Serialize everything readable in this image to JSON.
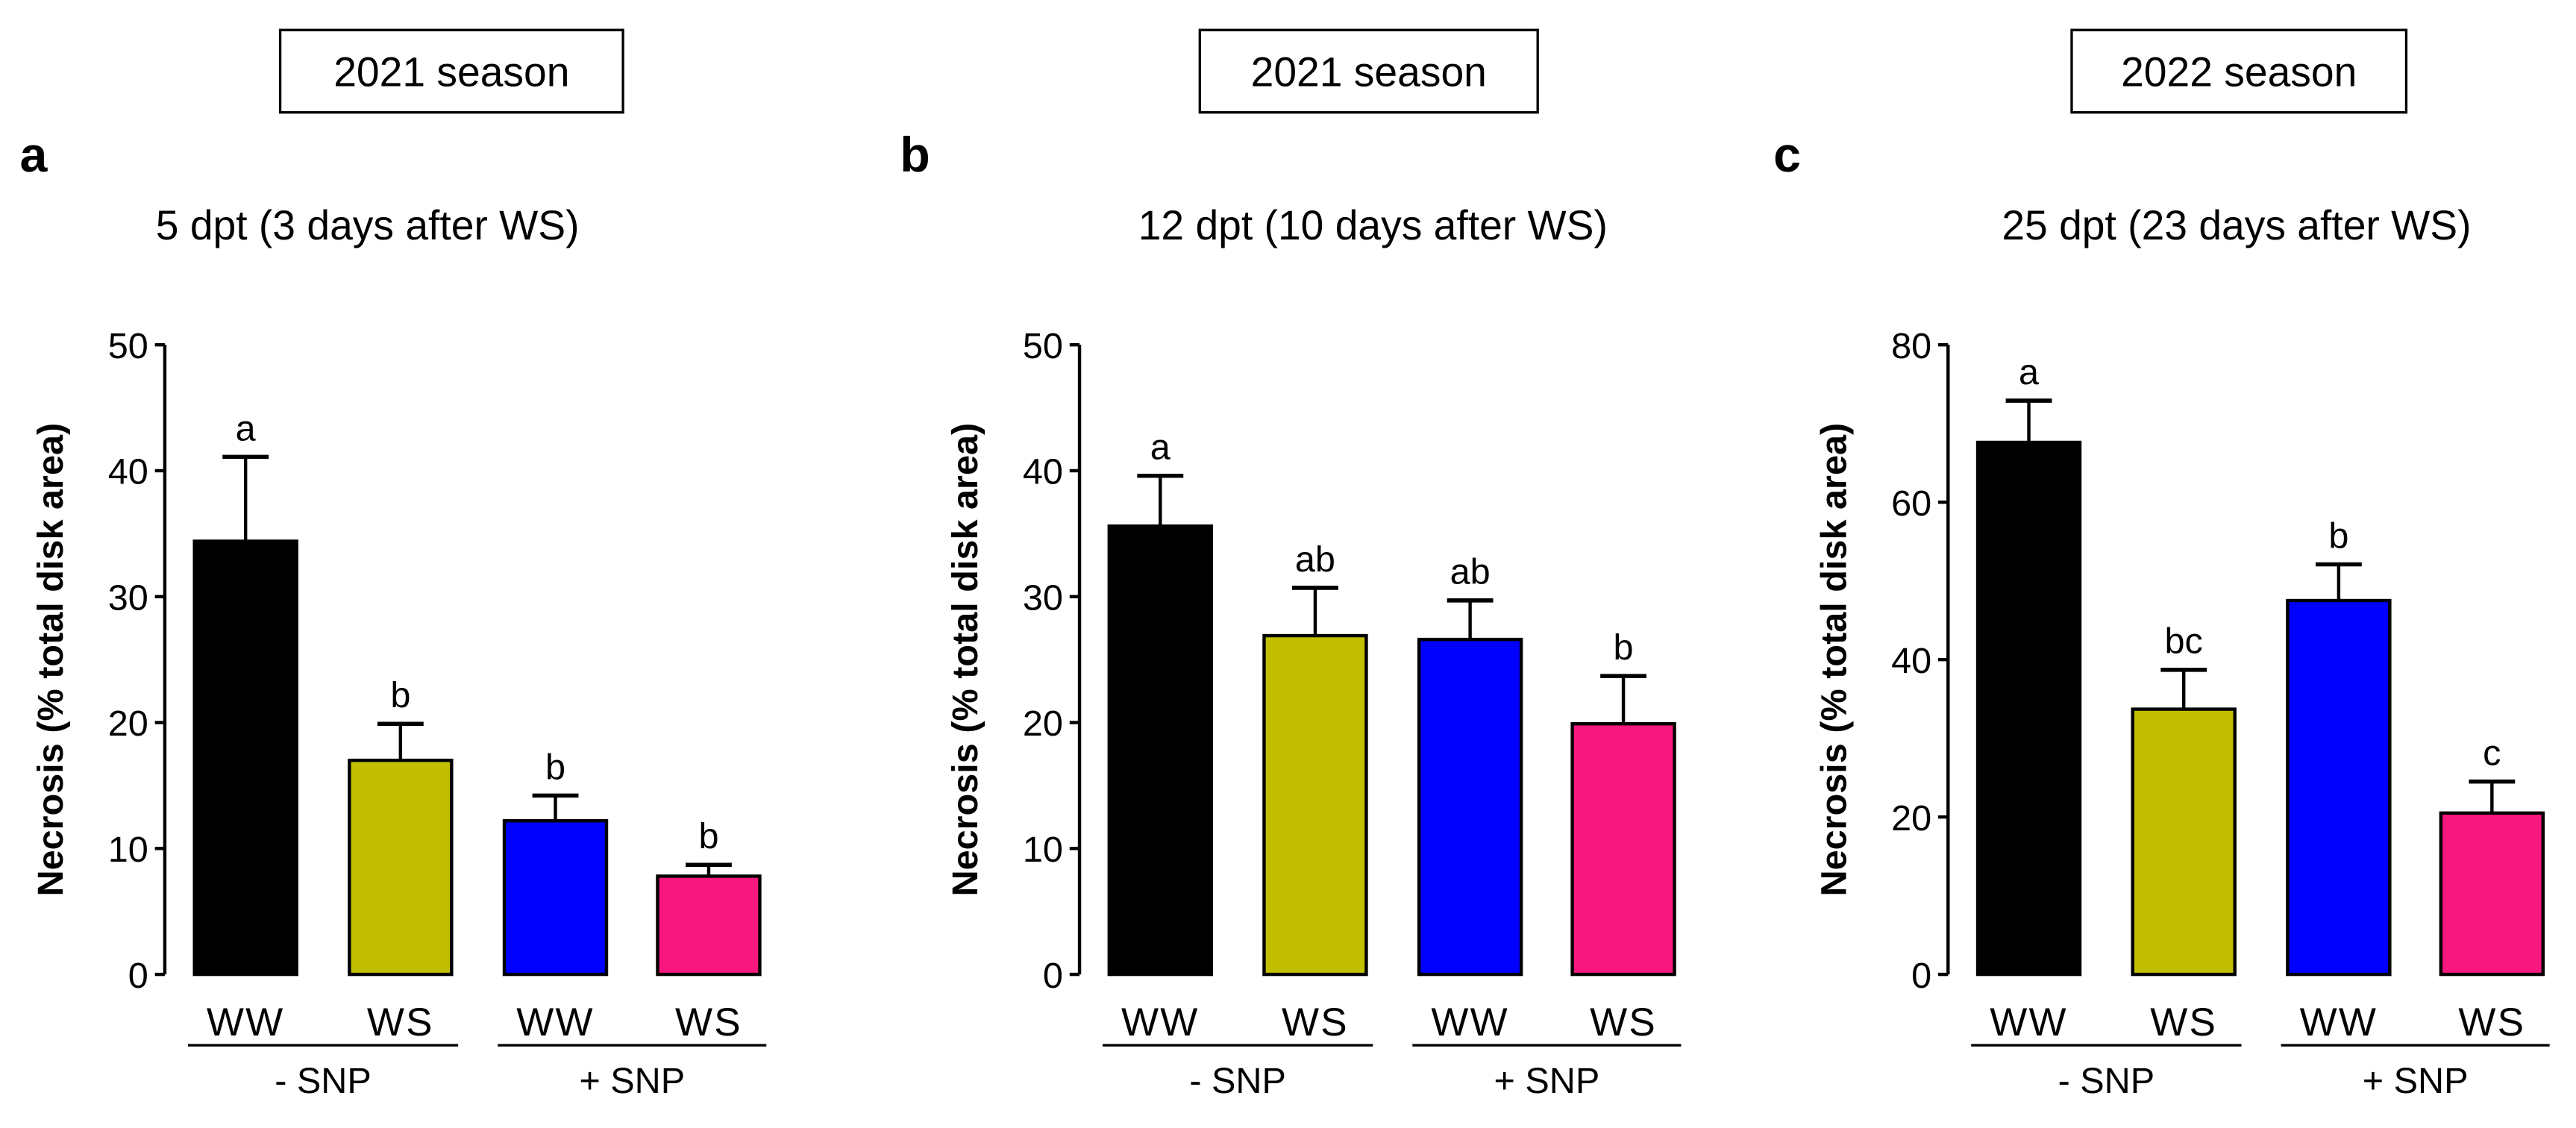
{
  "chart_data": [
    {
      "type": "bar",
      "panel": "a",
      "season": "2021 season",
      "title": "5 dpt (3 days after WS)",
      "ylabel": "Necrosis (% total disk area)",
      "ylim": [
        0,
        50
      ],
      "yticks": [
        0,
        10,
        20,
        30,
        40,
        50
      ],
      "categories": [
        "WW",
        "WS",
        "WW",
        "WS"
      ],
      "groups": [
        "- SNP",
        "+ SNP"
      ],
      "values": [
        34.4,
        17.0,
        12.2,
        7.8
      ],
      "errors": [
        6.7,
        2.9,
        2.0,
        0.9
      ],
      "letters": [
        "a",
        "b",
        "b",
        "b"
      ],
      "colors": [
        "#000000",
        "#c1bf00",
        "#0000ff",
        "#f7187f"
      ]
    },
    {
      "type": "bar",
      "panel": "b",
      "season": "2021 season",
      "title": "12 dpt (10 days after WS)",
      "ylabel": "Necrosis (% total disk area)",
      "ylim": [
        0,
        50
      ],
      "yticks": [
        0,
        10,
        20,
        30,
        40,
        50
      ],
      "categories": [
        "WW",
        "WS",
        "WW",
        "WS"
      ],
      "groups": [
        "- SNP",
        "+ SNP"
      ],
      "values": [
        35.6,
        26.9,
        26.6,
        19.9
      ],
      "errors": [
        4.0,
        3.8,
        3.1,
        3.8
      ],
      "letters": [
        "a",
        "ab",
        "ab",
        "b"
      ],
      "colors": [
        "#000000",
        "#c1bf00",
        "#0000ff",
        "#f7187f"
      ]
    },
    {
      "type": "bar",
      "panel": "c",
      "season": "2022 season",
      "title": "25 dpt (23 days after WS)",
      "ylabel": "Necrosis (% total disk area)",
      "ylim": [
        0,
        80
      ],
      "yticks": [
        0,
        20,
        40,
        60,
        80
      ],
      "categories": [
        "WW",
        "WS",
        "WW",
        "WS"
      ],
      "groups": [
        "- SNP",
        "+ SNP"
      ],
      "values": [
        67.6,
        33.7,
        47.5,
        20.5
      ],
      "errors": [
        5.3,
        5.0,
        4.6,
        4.0
      ],
      "letters": [
        "a",
        "bc",
        "b",
        "c"
      ],
      "colors": [
        "#000000",
        "#c1bf00",
        "#0000ff",
        "#f7187f"
      ]
    }
  ]
}
